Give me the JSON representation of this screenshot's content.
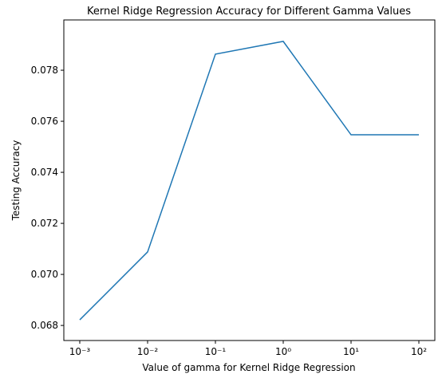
{
  "chart_data": {
    "type": "line",
    "title": "Kernel Ridge Regression Accuracy for Different Gamma Values",
    "xlabel": "Value of gamma for Kernel Ridge Regression",
    "ylabel": "Testing Accuracy",
    "x": [
      0.001,
      0.01,
      0.1,
      1,
      10,
      100
    ],
    "series": [
      {
        "name": "Testing Accuracy",
        "color": "#1f77b4",
        "values": [
          0.06822,
          0.07088,
          0.07863,
          0.07913,
          0.07547,
          0.07547
        ]
      }
    ],
    "xscale": "log",
    "xlim": [
      0.000582,
      171.9
    ],
    "xticks": [
      {
        "value": 0.001,
        "label": "10⁻³"
      },
      {
        "value": 0.01,
        "label": "10⁻²"
      },
      {
        "value": 0.1,
        "label": "10⁻¹"
      },
      {
        "value": 1,
        "label": "10⁰"
      },
      {
        "value": 10,
        "label": "10¹"
      },
      {
        "value": 100,
        "label": "10²"
      }
    ],
    "ylim": [
      0.06741,
      0.07997
    ],
    "yticks": [
      0.068,
      {
        "value": 0.07,
        "label": "0.070"
      },
      0.072,
      0.074,
      0.076,
      0.078
    ],
    "grid": false
  }
}
